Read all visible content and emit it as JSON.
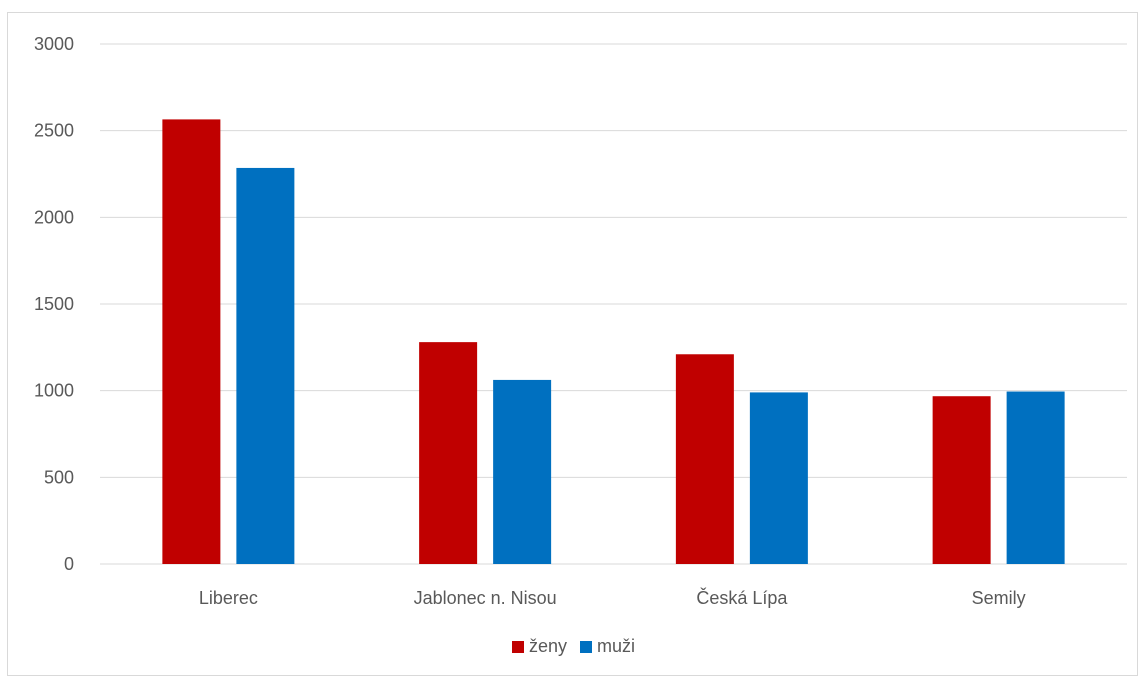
{
  "chart_data": {
    "type": "bar",
    "categories": [
      "Liberec",
      "Jablonec n. Nisou",
      "Česká Lípa",
      "Semily"
    ],
    "series": [
      {
        "name": "ženy",
        "color": "#c00000",
        "values": [
          2565,
          1280,
          1210,
          968
        ]
      },
      {
        "name": "muži",
        "color": "#0070c0",
        "values": [
          2285,
          1062,
          990,
          995
        ]
      }
    ],
    "ylim": [
      0,
      3000
    ],
    "yticks": [
      0,
      500,
      1000,
      1500,
      2000,
      2500,
      3000
    ],
    "grid": true,
    "legend_position": "bottom",
    "title": "",
    "xlabel": "",
    "ylabel": ""
  }
}
